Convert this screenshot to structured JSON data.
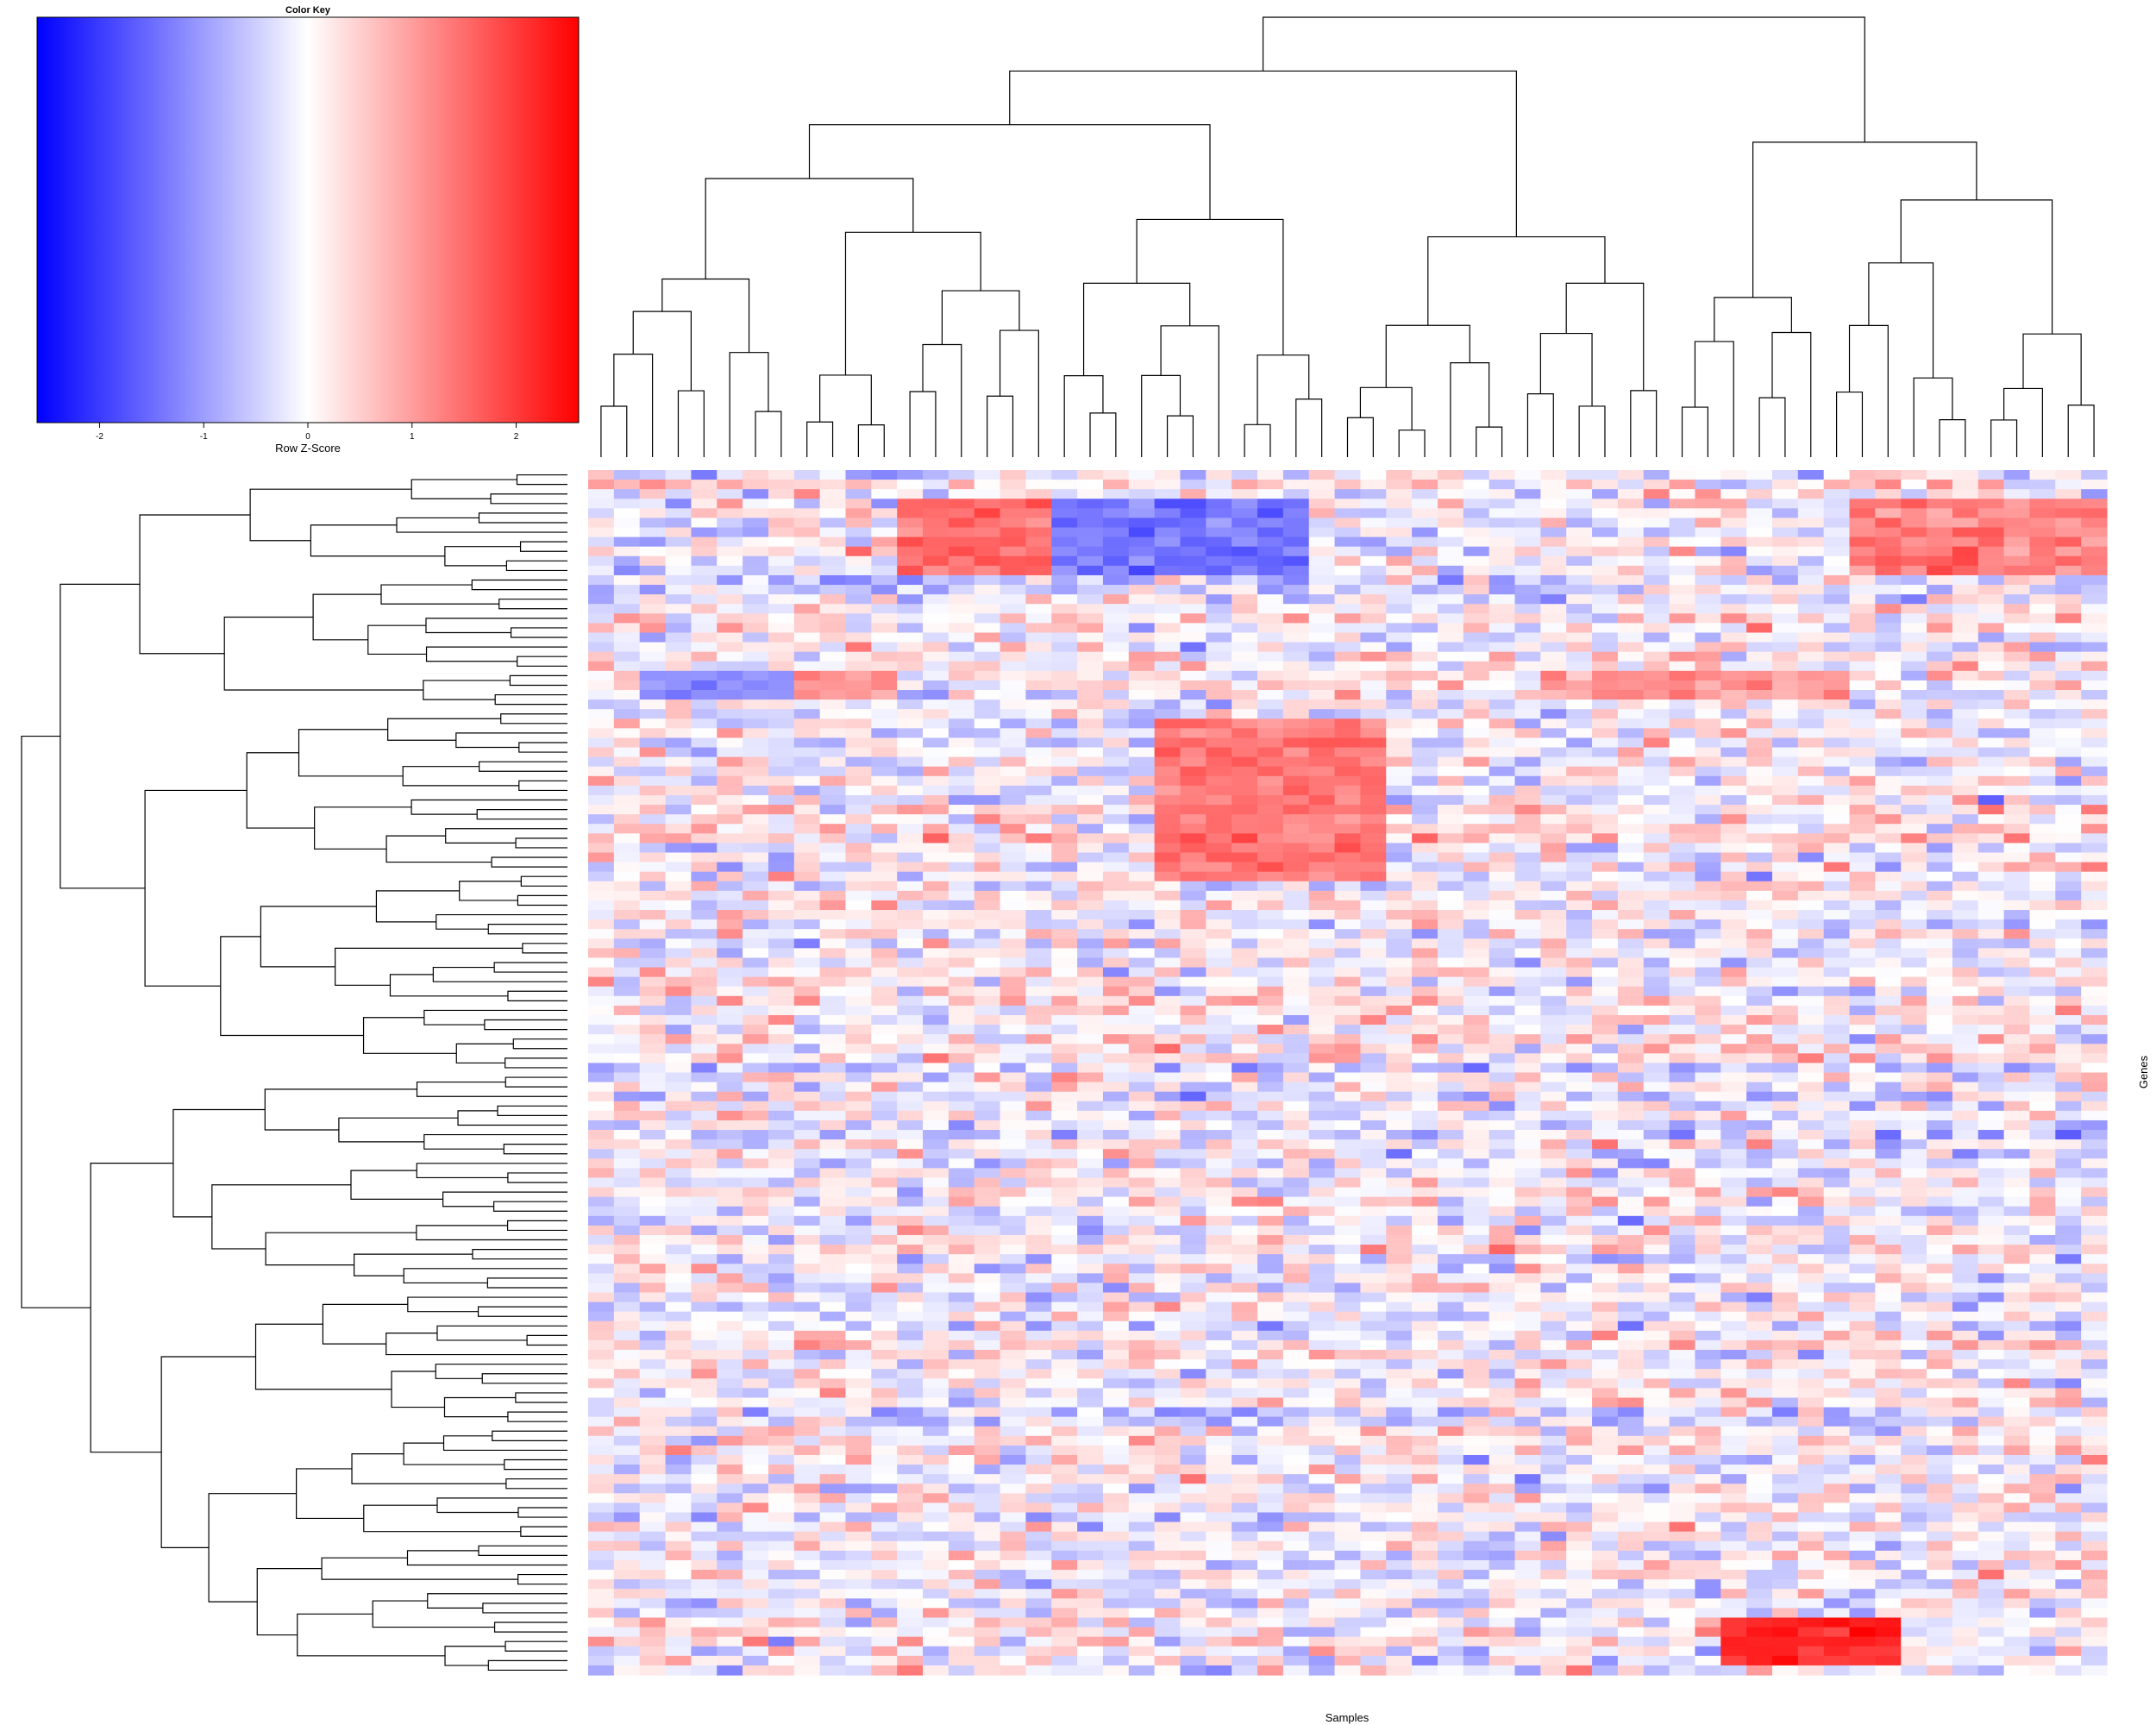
{
  "chart_data": {
    "type": "heatmap",
    "description_axes": {
      "xlabel": "Samples",
      "ylabel": "Genes"
    },
    "color_key": {
      "title": "Color Key",
      "xlabel": "Row Z-Score",
      "range": [
        -2.6,
        2.6
      ],
      "ticks": [
        -2,
        -1,
        0,
        1,
        2
      ],
      "tick_labels": [
        "-2",
        "-1",
        "0",
        "1",
        "2"
      ],
      "colors": {
        "low": "#0000ff",
        "mid": "#ffffff",
        "high": "#ff0000"
      }
    },
    "n_samples": 59,
    "n_genes": 126,
    "column_dendrogram": true,
    "row_dendrogram": true,
    "column_blocks": [
      {
        "group": 1,
        "approx_samples": 8
      },
      {
        "group": 2,
        "approx_samples": 10
      },
      {
        "group": 3,
        "approx_samples": 11
      },
      {
        "group": 4,
        "approx_samples": 13
      },
      {
        "group": 5,
        "approx_samples": 17
      }
    ],
    "notable_patterns": [
      {
        "rows": [
          3,
          10
        ],
        "cols": [
          12,
          17
        ],
        "zscore": 1.5
      },
      {
        "rows": [
          3,
          10
        ],
        "cols": [
          18,
          27
        ],
        "zscore": -1.4
      },
      {
        "rows": [
          3,
          10
        ],
        "cols": [
          49,
          58
        ],
        "zscore": 1.3
      },
      {
        "rows": [
          21,
          23
        ],
        "cols": [
          2,
          7
        ],
        "zscore": -1.2
      },
      {
        "rows": [
          21,
          23
        ],
        "cols": [
          8,
          11
        ],
        "zscore": 1.2
      },
      {
        "rows": [
          21,
          23
        ],
        "cols": [
          37,
          48
        ],
        "zscore": 1.1
      },
      {
        "rows": [
          26,
          42
        ],
        "cols": [
          22,
          30
        ],
        "zscore": 1.4
      },
      {
        "rows": [
          120,
          124
        ],
        "cols": [
          44,
          50
        ],
        "zscore": 2.2
      }
    ]
  }
}
